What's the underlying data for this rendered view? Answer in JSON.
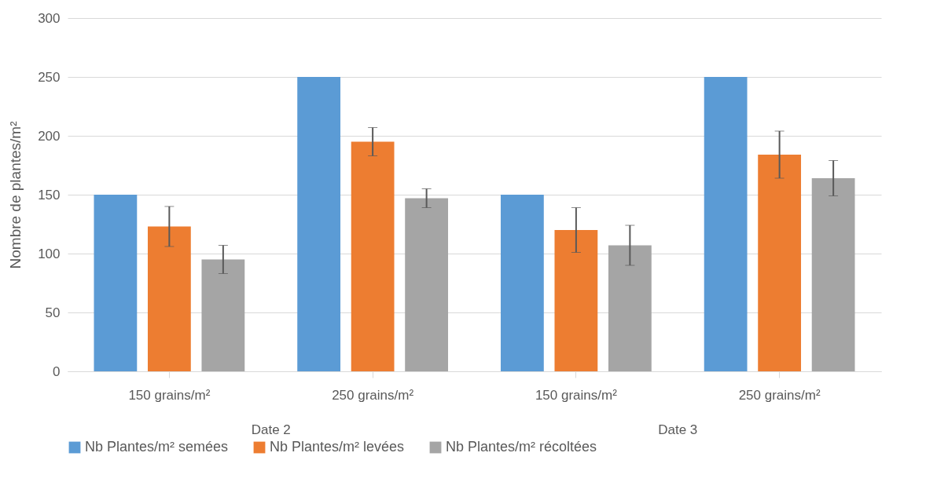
{
  "chart_data": {
    "type": "bar",
    "ylabel": "Nombre de plantes/m²",
    "categories": [
      "150 grains/m²",
      "250 grains/m²",
      "150 grains/m²",
      "250 grains/m²"
    ],
    "series": [
      {
        "name": "Nb Plantes/m² semées",
        "color": "#5b9bd5",
        "values": [
          150,
          250,
          150,
          250
        ]
      },
      {
        "name": "Nb Plantes/m² levées",
        "color": "#ed7d31",
        "values": [
          123,
          195,
          120,
          184
        ],
        "errors": [
          17,
          12,
          19,
          20
        ]
      },
      {
        "name": "Nb Plantes/m² récoltées",
        "color": "#a5a5a5",
        "values": [
          95,
          147,
          107,
          164
        ],
        "errors": [
          12,
          8,
          17,
          15
        ]
      }
    ],
    "annotations": [
      "Date 2",
      "Date 3"
    ],
    "ylim": [
      0,
      300
    ],
    "yticks": [
      0,
      50,
      100,
      150,
      200,
      250,
      300
    ],
    "grid": "y",
    "legend": "bottom"
  }
}
